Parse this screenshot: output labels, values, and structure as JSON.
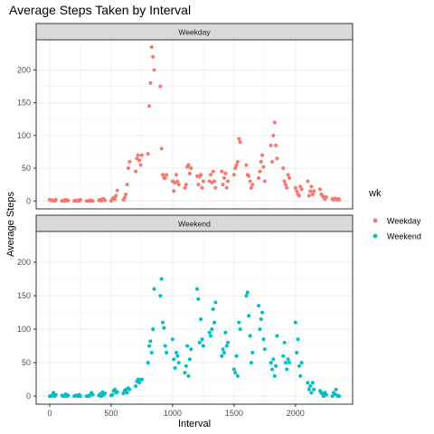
{
  "chart_data": {
    "type": "scatter",
    "title": "Average Steps Taken by Interval",
    "xlabel": "Interval",
    "ylabel": "Average Steps",
    "xlim": [
      -110,
      2465
    ],
    "ylim": [
      -12,
      246
    ],
    "x_ticks": [
      0,
      500,
      1000,
      1500,
      2000
    ],
    "y_ticks": [
      0,
      50,
      100,
      150,
      200
    ],
    "grid": true,
    "legend": {
      "title": "wk",
      "placement": "right",
      "entries": [
        {
          "name": "Weekday",
          "color": "#F8766D"
        },
        {
          "name": "Weekend",
          "color": "#00BFC4"
        }
      ]
    },
    "panels": [
      {
        "label": "Weekday",
        "series_name": "Weekday",
        "color": "#F8766D",
        "points": [
          [
            0,
            2
          ],
          [
            10,
            1
          ],
          [
            20,
            1
          ],
          [
            30,
            1
          ],
          [
            40,
            0
          ],
          [
            50,
            2
          ],
          [
            100,
            0
          ],
          [
            110,
            1
          ],
          [
            120,
            0
          ],
          [
            130,
            2
          ],
          [
            140,
            0
          ],
          [
            150,
            1
          ],
          [
            200,
            0
          ],
          [
            210,
            1
          ],
          [
            220,
            0
          ],
          [
            230,
            1
          ],
          [
            240,
            0
          ],
          [
            250,
            2
          ],
          [
            300,
            0
          ],
          [
            310,
            0
          ],
          [
            320,
            0
          ],
          [
            330,
            1
          ],
          [
            340,
            0
          ],
          [
            350,
            0
          ],
          [
            400,
            1
          ],
          [
            410,
            2
          ],
          [
            420,
            0
          ],
          [
            430,
            3
          ],
          [
            440,
            3
          ],
          [
            450,
            1
          ],
          [
            500,
            0
          ],
          [
            510,
            3
          ],
          [
            520,
            5
          ],
          [
            530,
            3
          ],
          [
            540,
            8
          ],
          [
            550,
            16
          ],
          [
            600,
            2
          ],
          [
            610,
            5
          ],
          [
            620,
            10
          ],
          [
            630,
            25
          ],
          [
            640,
            50
          ],
          [
            650,
            60
          ],
          [
            700,
            45
          ],
          [
            710,
            65
          ],
          [
            720,
            70
          ],
          [
            730,
            62
          ],
          [
            740,
            55
          ],
          [
            750,
            70
          ],
          [
            800,
            72
          ],
          [
            810,
            145
          ],
          [
            820,
            180
          ],
          [
            830,
            235
          ],
          [
            840,
            220
          ],
          [
            850,
            200
          ],
          [
            900,
            175
          ],
          [
            910,
            80
          ],
          [
            920,
            40
          ],
          [
            930,
            35
          ],
          [
            940,
            35
          ],
          [
            950,
            40
          ],
          [
            1000,
            30
          ],
          [
            1010,
            15
          ],
          [
            1020,
            28
          ],
          [
            1030,
            40
          ],
          [
            1040,
            30
          ],
          [
            1050,
            25
          ],
          [
            1100,
            20
          ],
          [
            1110,
            25
          ],
          [
            1120,
            52
          ],
          [
            1130,
            55
          ],
          [
            1140,
            42
          ],
          [
            1150,
            50
          ],
          [
            1200,
            38
          ],
          [
            1210,
            25
          ],
          [
            1220,
            37
          ],
          [
            1230,
            40
          ],
          [
            1240,
            20
          ],
          [
            1250,
            30
          ],
          [
            1300,
            30
          ],
          [
            1310,
            40
          ],
          [
            1320,
            28
          ],
          [
            1330,
            45
          ],
          [
            1340,
            30
          ],
          [
            1350,
            20
          ],
          [
            1400,
            45
          ],
          [
            1410,
            25
          ],
          [
            1420,
            35
          ],
          [
            1430,
            42
          ],
          [
            1440,
            20
          ],
          [
            1450,
            30
          ],
          [
            1500,
            40
          ],
          [
            1510,
            50
          ],
          [
            1520,
            55
          ],
          [
            1530,
            60
          ],
          [
            1540,
            95
          ],
          [
            1550,
            90
          ],
          [
            1600,
            55
          ],
          [
            1610,
            40
          ],
          [
            1620,
            38
          ],
          [
            1630,
            30
          ],
          [
            1640,
            20
          ],
          [
            1650,
            25
          ],
          [
            1700,
            35
          ],
          [
            1710,
            45
          ],
          [
            1720,
            60
          ],
          [
            1730,
            70
          ],
          [
            1740,
            52
          ],
          [
            1750,
            30
          ],
          [
            1800,
            85
          ],
          [
            1810,
            60
          ],
          [
            1820,
            100
          ],
          [
            1830,
            120
          ],
          [
            1840,
            85
          ],
          [
            1850,
            65
          ],
          [
            1900,
            50
          ],
          [
            1910,
            30
          ],
          [
            1920,
            25
          ],
          [
            1930,
            20
          ],
          [
            1940,
            40
          ],
          [
            1950,
            35
          ],
          [
            2000,
            20
          ],
          [
            2010,
            15
          ],
          [
            2020,
            10
          ],
          [
            2030,
            8
          ],
          [
            2040,
            22
          ],
          [
            2050,
            18
          ],
          [
            2100,
            30
          ],
          [
            2110,
            8
          ],
          [
            2120,
            15
          ],
          [
            2130,
            22
          ],
          [
            2140,
            10
          ],
          [
            2150,
            15
          ],
          [
            2200,
            18
          ],
          [
            2210,
            10
          ],
          [
            2220,
            8
          ],
          [
            2230,
            5
          ],
          [
            2240,
            3
          ],
          [
            2250,
            6
          ],
          [
            2300,
            3
          ],
          [
            2310,
            2
          ],
          [
            2320,
            4
          ],
          [
            2330,
            3
          ],
          [
            2340,
            2
          ],
          [
            2350,
            3
          ],
          [
            2355,
            2
          ]
        ]
      },
      {
        "label": "Weekend",
        "series_name": "Weekend",
        "color": "#00BFC4",
        "points": [
          [
            0,
            0
          ],
          [
            10,
            0
          ],
          [
            20,
            1
          ],
          [
            30,
            5
          ],
          [
            40,
            0
          ],
          [
            50,
            2
          ],
          [
            100,
            1
          ],
          [
            110,
            0
          ],
          [
            120,
            0
          ],
          [
            130,
            3
          ],
          [
            140,
            0
          ],
          [
            150,
            1
          ],
          [
            200,
            0
          ],
          [
            210,
            1
          ],
          [
            220,
            1
          ],
          [
            230,
            0
          ],
          [
            240,
            2
          ],
          [
            250,
            0
          ],
          [
            300,
            0
          ],
          [
            310,
            0
          ],
          [
            320,
            0
          ],
          [
            330,
            2
          ],
          [
            340,
            5
          ],
          [
            350,
            2
          ],
          [
            400,
            1
          ],
          [
            410,
            3
          ],
          [
            420,
            0
          ],
          [
            430,
            6
          ],
          [
            440,
            2
          ],
          [
            450,
            4
          ],
          [
            500,
            1
          ],
          [
            510,
            2
          ],
          [
            520,
            8
          ],
          [
            530,
            10
          ],
          [
            540,
            5
          ],
          [
            550,
            6
          ],
          [
            600,
            4
          ],
          [
            610,
            8
          ],
          [
            620,
            10
          ],
          [
            630,
            5
          ],
          [
            640,
            12
          ],
          [
            650,
            10
          ],
          [
            700,
            15
          ],
          [
            710,
            22
          ],
          [
            720,
            25
          ],
          [
            730,
            20
          ],
          [
            740,
            24
          ],
          [
            750,
            25
          ],
          [
            800,
            50
          ],
          [
            810,
            75
          ],
          [
            820,
            82
          ],
          [
            830,
            65
          ],
          [
            840,
            100
          ],
          [
            850,
            160
          ],
          [
            900,
            150
          ],
          [
            910,
            175
          ],
          [
            920,
            110
          ],
          [
            930,
            102
          ],
          [
            940,
            75
          ],
          [
            950,
            65
          ],
          [
            1000,
            85
          ],
          [
            1010,
            55
          ],
          [
            1020,
            42
          ],
          [
            1030,
            65
          ],
          [
            1040,
            60
          ],
          [
            1050,
            50
          ],
          [
            1100,
            35
          ],
          [
            1110,
            45
          ],
          [
            1120,
            75
          ],
          [
            1130,
            30
          ],
          [
            1140,
            55
          ],
          [
            1150,
            70
          ],
          [
            1200,
            160
          ],
          [
            1210,
            145
          ],
          [
            1220,
            80
          ],
          [
            1230,
            115
          ],
          [
            1240,
            85
          ],
          [
            1250,
            75
          ],
          [
            1300,
            95
          ],
          [
            1310,
            90
          ],
          [
            1320,
            100
          ],
          [
            1330,
            130
          ],
          [
            1340,
            110
          ],
          [
            1350,
            140
          ],
          [
            1400,
            60
          ],
          [
            1410,
            70
          ],
          [
            1420,
            65
          ],
          [
            1430,
            95
          ],
          [
            1440,
            75
          ],
          [
            1450,
            80
          ],
          [
            1500,
            40
          ],
          [
            1510,
            35
          ],
          [
            1520,
            60
          ],
          [
            1530,
            30
          ],
          [
            1540,
            110
          ],
          [
            1550,
            100
          ],
          [
            1600,
            150
          ],
          [
            1610,
            155
          ],
          [
            1620,
            120
          ],
          [
            1630,
            90
          ],
          [
            1640,
            50
          ],
          [
            1650,
            65
          ],
          [
            1700,
            135
          ],
          [
            1710,
            100
          ],
          [
            1720,
            115
          ],
          [
            1730,
            125
          ],
          [
            1740,
            85
          ],
          [
            1750,
            70
          ],
          [
            1800,
            50
          ],
          [
            1810,
            40
          ],
          [
            1820,
            55
          ],
          [
            1830,
            30
          ],
          [
            1840,
            45
          ],
          [
            1850,
            90
          ],
          [
            1900,
            60
          ],
          [
            1910,
            80
          ],
          [
            1920,
            50
          ],
          [
            1930,
            40
          ],
          [
            1940,
            55
          ],
          [
            1950,
            50
          ],
          [
            2000,
            110
          ],
          [
            2010,
            65
          ],
          [
            2020,
            85
          ],
          [
            2030,
            45
          ],
          [
            2040,
            30
          ],
          [
            2050,
            50
          ],
          [
            2100,
            20
          ],
          [
            2110,
            10
          ],
          [
            2120,
            15
          ],
          [
            2130,
            5
          ],
          [
            2140,
            20
          ],
          [
            2150,
            10
          ],
          [
            2200,
            8
          ],
          [
            2210,
            5
          ],
          [
            2220,
            3
          ],
          [
            2230,
            0
          ],
          [
            2240,
            5
          ],
          [
            2250,
            2
          ],
          [
            2300,
            0
          ],
          [
            2310,
            5
          ],
          [
            2320,
            3
          ],
          [
            2330,
            10
          ],
          [
            2340,
            1
          ],
          [
            2350,
            0
          ],
          [
            2355,
            0
          ]
        ]
      }
    ]
  }
}
